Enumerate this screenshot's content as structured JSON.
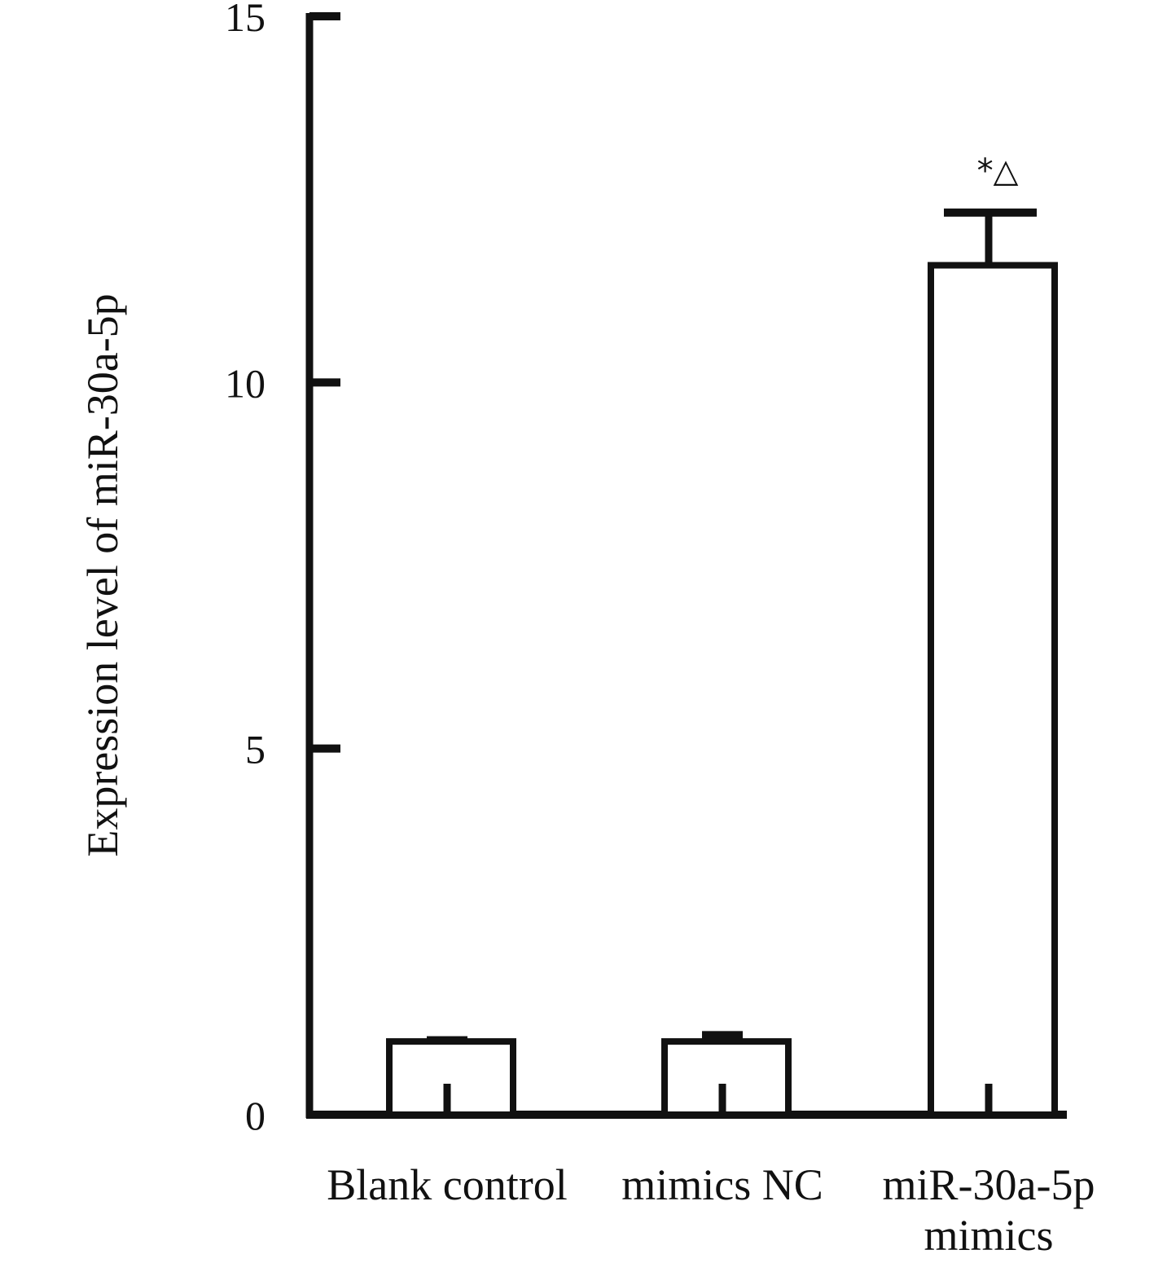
{
  "chart_data": {
    "type": "bar",
    "title": "",
    "xlabel": "",
    "ylabel": "Expression level of miR-30a-5p",
    "ylim": [
      0,
      15
    ],
    "yticks": [
      "0",
      "5",
      "10",
      "15"
    ],
    "ytick_values": [
      0,
      5,
      10,
      15
    ],
    "categories": [
      [
        "Blank control"
      ],
      [
        "mimics NC"
      ],
      [
        "miR-30a-5p",
        "mimics"
      ]
    ],
    "values": [
      1.0,
      1.0,
      11.6
    ],
    "errors": [
      0.05,
      0.12,
      0.72
    ],
    "annotations": [
      "",
      "",
      "*△"
    ],
    "grid": false,
    "legend": "none",
    "colors": {
      "bar_fill": "#ffffff",
      "stroke": "#111111"
    }
  }
}
